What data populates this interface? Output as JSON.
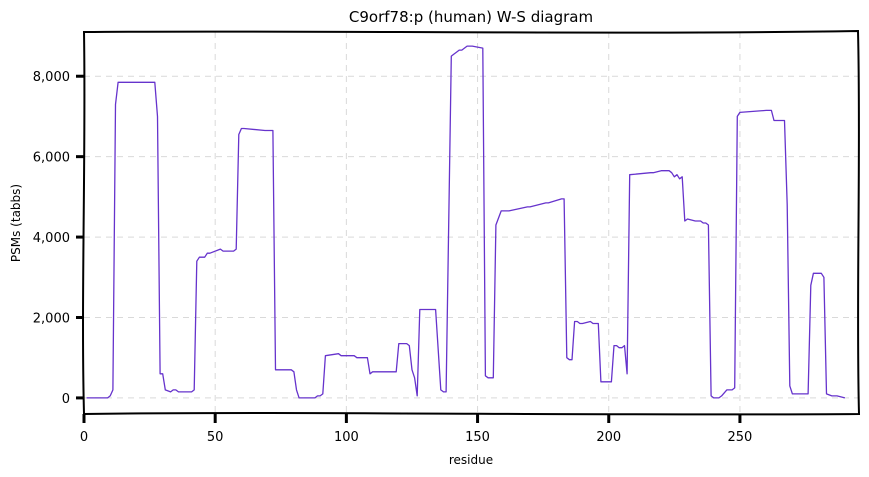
{
  "chart_data": {
    "type": "line",
    "title": "C9orf78:p (human) W-S diagram",
    "xlabel": "residue",
    "ylabel": "PSMs (tabbs)",
    "xlim": [
      0,
      295
    ],
    "ylim": [
      -400,
      9100
    ],
    "xticks": [
      0,
      50,
      100,
      150,
      200,
      250
    ],
    "xtick_labels": [
      "0",
      "50",
      "100",
      "150",
      "200",
      "250"
    ],
    "yticks": [
      0,
      2000,
      4000,
      6000,
      8000
    ],
    "ytick_labels": [
      "0",
      "2,000",
      "4,000",
      "6,000",
      "8,000"
    ],
    "grid": true,
    "legend": "none",
    "colors": {
      "series": "#6633cc",
      "grid": "#d9d9d9",
      "axis": "#000000"
    },
    "series": [
      {
        "x": [
          1,
          9,
          10,
          11,
          12,
          13,
          27,
          28,
          29,
          30,
          31,
          33,
          34,
          35,
          36,
          41,
          42,
          43,
          44,
          46,
          47,
          48,
          52,
          53,
          57,
          58,
          59,
          60,
          61,
          69,
          70,
          72,
          73,
          79,
          80,
          81,
          82,
          88,
          89,
          90,
          91,
          92,
          97,
          98,
          102,
          103,
          104,
          107,
          108,
          109,
          110,
          116,
          117,
          118,
          119,
          120,
          123,
          124,
          125,
          126,
          127,
          128,
          132,
          133,
          134,
          136,
          137,
          138,
          140,
          141,
          142,
          143,
          144,
          146,
          147,
          148,
          152,
          153,
          154,
          155,
          156,
          157,
          159,
          160,
          161,
          162,
          169,
          170,
          176,
          177,
          182,
          183,
          184,
          185,
          186,
          187,
          188,
          189,
          190,
          193,
          194,
          195,
          196,
          197,
          201,
          202,
          203,
          204,
          205,
          206,
          207,
          208,
          216,
          217,
          220,
          221,
          223,
          224,
          225,
          226,
          227,
          228,
          229,
          230,
          233,
          234,
          235,
          236,
          237,
          238,
          239,
          240,
          242,
          243,
          245,
          246,
          247,
          248,
          249,
          250,
          260,
          261,
          262,
          263,
          265,
          266,
          267,
          268,
          269,
          270,
          274,
          275,
          276,
          277,
          278,
          280,
          281,
          282,
          283,
          285,
          287,
          290
        ],
        "y": [
          0,
          0,
          50,
          200,
          7300,
          7850,
          7850,
          7000,
          600,
          600,
          200,
          150,
          200,
          200,
          150,
          150,
          200,
          3400,
          3500,
          3500,
          3600,
          3600,
          3700,
          3650,
          3650,
          3700,
          6550,
          6700,
          6700,
          6650,
          6650,
          6650,
          700,
          700,
          650,
          200,
          0,
          0,
          50,
          50,
          100,
          1050,
          1100,
          1050,
          1050,
          1050,
          1000,
          1000,
          1000,
          600,
          650,
          650,
          650,
          650,
          650,
          1350,
          1350,
          1300,
          700,
          500,
          50,
          2200,
          2200,
          2200,
          2200,
          200,
          150,
          150,
          8500,
          8550,
          8600,
          8650,
          8650,
          8750,
          8750,
          8750,
          8700,
          550,
          500,
          500,
          500,
          4300,
          4650,
          4650,
          4650,
          4650,
          4750,
          4750,
          4850,
          4850,
          4950,
          4950,
          1000,
          950,
          950,
          1900,
          1900,
          1850,
          1850,
          1900,
          1850,
          1850,
          1850,
          400,
          400,
          1300,
          1300,
          1250,
          1250,
          1300,
          600,
          5550,
          5600,
          5600,
          5650,
          5650,
          5650,
          5600,
          5500,
          5550,
          5450,
          5500,
          4400,
          4450,
          4400,
          4400,
          4400,
          4350,
          4350,
          4300,
          50,
          0,
          0,
          50,
          200,
          200,
          200,
          250,
          7000,
          7100,
          7150,
          7150,
          7150,
          6900,
          6900,
          6900,
          6900,
          4800,
          300,
          100,
          100,
          100,
          100,
          2800,
          3100,
          3100,
          3100,
          3000,
          100,
          50,
          50,
          0
        ]
      }
    ]
  }
}
